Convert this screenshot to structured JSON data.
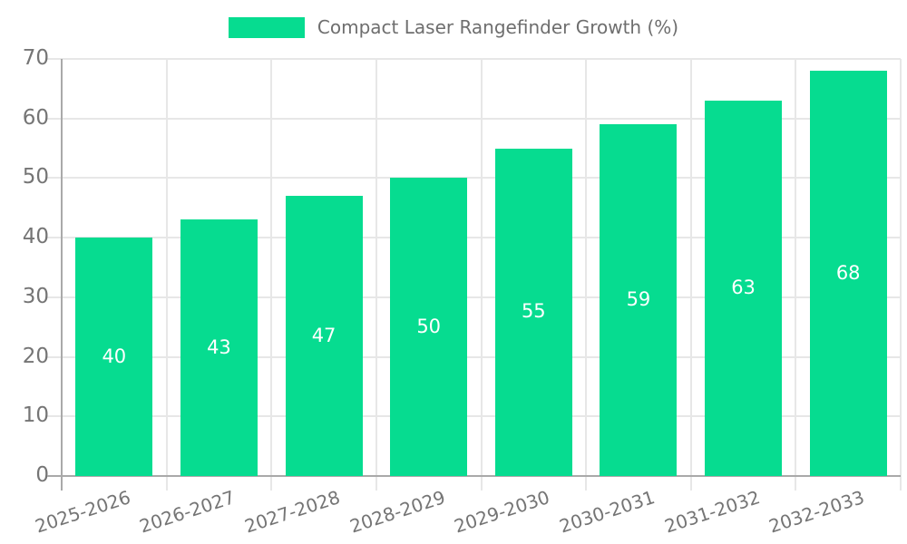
{
  "chart_data": {
    "type": "bar",
    "title": "",
    "legend": {
      "label": "Compact Laser Rangefinder Growth (%)",
      "position": "top-center"
    },
    "categories": [
      "2025-2026",
      "2026-2027",
      "2027-2028",
      "2028-2029",
      "2029-2030",
      "2030-2031",
      "2031-2032",
      "2032-2033"
    ],
    "values": [
      40,
      43,
      47,
      50,
      55,
      59,
      63,
      68
    ],
    "xlabel": "",
    "ylabel": "",
    "ylim": [
      0,
      70
    ],
    "yticks": [
      0,
      10,
      20,
      30,
      40,
      50,
      60,
      70
    ],
    "grid": true,
    "bar_labels_inside": true,
    "colors": {
      "bar": "#06dc90",
      "bar_label": "#ffffff",
      "tick_text": "#757575",
      "legend_text": "#6e6e6e",
      "grid": "#e7e7e7",
      "axis": "#a9a9a9"
    }
  }
}
